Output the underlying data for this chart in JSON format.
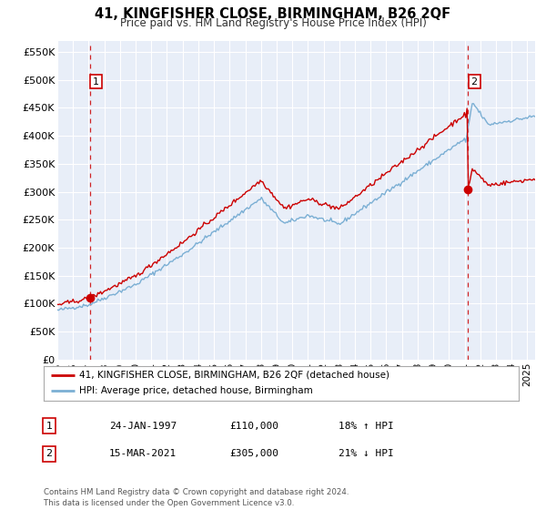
{
  "title": "41, KINGFISHER CLOSE, BIRMINGHAM, B26 2QF",
  "subtitle": "Price paid vs. HM Land Registry's House Price Index (HPI)",
  "xlim": [
    1995.0,
    2025.5
  ],
  "ylim": [
    0,
    570000
  ],
  "yticks": [
    0,
    50000,
    100000,
    150000,
    200000,
    250000,
    300000,
    350000,
    400000,
    450000,
    500000,
    550000
  ],
  "ytick_labels": [
    "£0",
    "£50K",
    "£100K",
    "£150K",
    "£200K",
    "£250K",
    "£300K",
    "£350K",
    "£400K",
    "£450K",
    "£500K",
    "£550K"
  ],
  "xticks": [
    1995,
    1996,
    1997,
    1998,
    1999,
    2000,
    2001,
    2002,
    2003,
    2004,
    2005,
    2006,
    2007,
    2008,
    2009,
    2010,
    2011,
    2012,
    2013,
    2014,
    2015,
    2016,
    2017,
    2018,
    2019,
    2020,
    2021,
    2022,
    2023,
    2024,
    2025
  ],
  "property_color": "#cc0000",
  "hpi_color": "#7bafd4",
  "vline_color": "#cc0000",
  "marker_color": "#cc0000",
  "background_color": "#e8eef8",
  "grid_color": "#ffffff",
  "legend_label_property": "41, KINGFISHER CLOSE, BIRMINGHAM, B26 2QF (detached house)",
  "legend_label_hpi": "HPI: Average price, detached house, Birmingham",
  "annotation1_num": "1",
  "annotation1_date": "24-JAN-1997",
  "annotation1_price": "£110,000",
  "annotation1_hpi": "18% ↑ HPI",
  "annotation1_year": 1997.07,
  "annotation1_value": 110000,
  "annotation2_num": "2",
  "annotation2_date": "15-MAR-2021",
  "annotation2_price": "£305,000",
  "annotation2_hpi": "21% ↓ HPI",
  "annotation2_year": 2021.21,
  "annotation2_value": 305000,
  "footer": "Contains HM Land Registry data © Crown copyright and database right 2024.\nThis data is licensed under the Open Government Licence v3.0."
}
